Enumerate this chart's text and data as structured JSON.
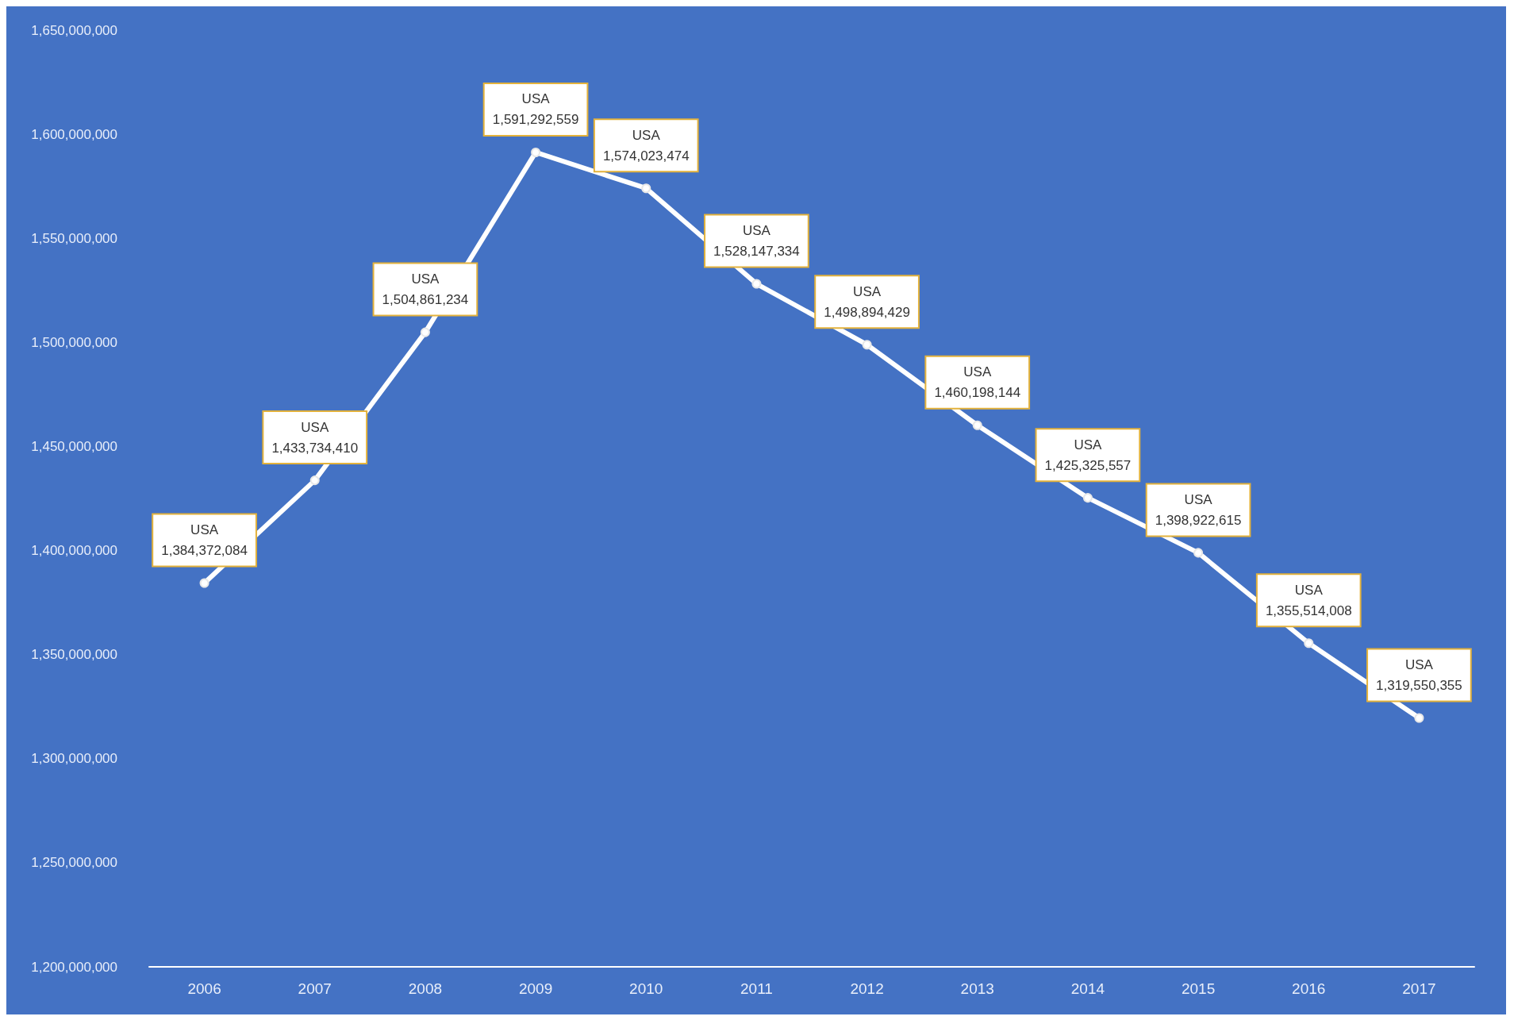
{
  "chart_data": {
    "type": "line",
    "categories": [
      "2006",
      "2007",
      "2008",
      "2009",
      "2010",
      "2011",
      "2012",
      "2013",
      "2014",
      "2015",
      "2016",
      "2017"
    ],
    "series": [
      {
        "name": "USA",
        "color": "#ffffff",
        "values": [
          1384372084,
          1433734410,
          1504861234,
          1591292559,
          1574023474,
          1528147334,
          1498894429,
          1460198144,
          1425325557,
          1398922615,
          1355514008,
          1319550355
        ],
        "value_labels": [
          "1,384,372,084",
          "1,433,734,410",
          "1,504,861,234",
          "1,591,292,559",
          "1,574,023,474",
          "1,528,147,334",
          "1,498,894,429",
          "1,460,198,144",
          "1,425,325,557",
          "1,398,922,615",
          "1,355,514,008",
          "1,319,550,355"
        ]
      }
    ],
    "ylim": [
      1200000000,
      1650000000
    ],
    "yticks": [
      {
        "value": 1200000000,
        "label": "1,200,000,000"
      },
      {
        "value": 1250000000,
        "label": "1,250,000,000"
      },
      {
        "value": 1300000000,
        "label": "1,300,000,000"
      },
      {
        "value": 1350000000,
        "label": "1,350,000,000"
      },
      {
        "value": 1400000000,
        "label": "1,400,000,000"
      },
      {
        "value": 1450000000,
        "label": "1,450,000,000"
      },
      {
        "value": 1500000000,
        "label": "1,500,000,000"
      },
      {
        "value": 1550000000,
        "label": "1,550,000,000"
      },
      {
        "value": 1600000000,
        "label": "1,600,000,000"
      },
      {
        "value": 1650000000,
        "label": "1,650,000,000"
      }
    ],
    "grid": false,
    "legend": false,
    "marker": "circle",
    "line_style": "solid"
  }
}
